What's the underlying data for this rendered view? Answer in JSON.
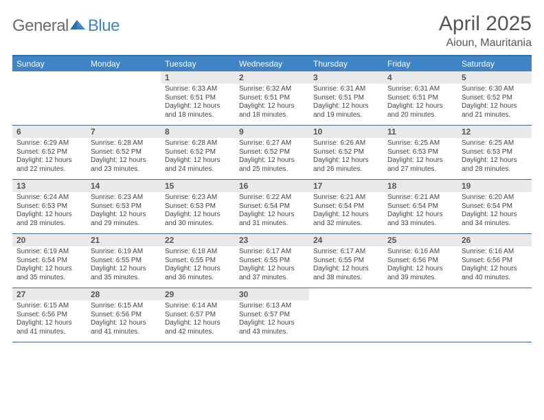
{
  "logo": {
    "general": "General",
    "blue": "Blue"
  },
  "title": "April 2025",
  "location": "Aioun, Mauritania",
  "colors": {
    "header_bar": "#3f84c4",
    "header_border_top": "#2f6fa8",
    "week_border": "#3f6b93",
    "daynum_bg": "#e9e9e9",
    "text": "#555",
    "body_text": "#444"
  },
  "fonts": {
    "title_size": 30,
    "location_size": 16,
    "dayhead_size": 12,
    "daynum_size": 12,
    "body_size": 10
  },
  "daynames": [
    "Sunday",
    "Monday",
    "Tuesday",
    "Wednesday",
    "Thursday",
    "Friday",
    "Saturday"
  ],
  "weeks": [
    [
      {
        "n": "",
        "sr": "",
        "ss": "",
        "dl": ""
      },
      {
        "n": "",
        "sr": "",
        "ss": "",
        "dl": ""
      },
      {
        "n": "1",
        "sr": "Sunrise: 6:33 AM",
        "ss": "Sunset: 6:51 PM",
        "dl": "Daylight: 12 hours and 18 minutes."
      },
      {
        "n": "2",
        "sr": "Sunrise: 6:32 AM",
        "ss": "Sunset: 6:51 PM",
        "dl": "Daylight: 12 hours and 18 minutes."
      },
      {
        "n": "3",
        "sr": "Sunrise: 6:31 AM",
        "ss": "Sunset: 6:51 PM",
        "dl": "Daylight: 12 hours and 19 minutes."
      },
      {
        "n": "4",
        "sr": "Sunrise: 6:31 AM",
        "ss": "Sunset: 6:51 PM",
        "dl": "Daylight: 12 hours and 20 minutes."
      },
      {
        "n": "5",
        "sr": "Sunrise: 6:30 AM",
        "ss": "Sunset: 6:52 PM",
        "dl": "Daylight: 12 hours and 21 minutes."
      }
    ],
    [
      {
        "n": "6",
        "sr": "Sunrise: 6:29 AM",
        "ss": "Sunset: 6:52 PM",
        "dl": "Daylight: 12 hours and 22 minutes."
      },
      {
        "n": "7",
        "sr": "Sunrise: 6:28 AM",
        "ss": "Sunset: 6:52 PM",
        "dl": "Daylight: 12 hours and 23 minutes."
      },
      {
        "n": "8",
        "sr": "Sunrise: 6:28 AM",
        "ss": "Sunset: 6:52 PM",
        "dl": "Daylight: 12 hours and 24 minutes."
      },
      {
        "n": "9",
        "sr": "Sunrise: 6:27 AM",
        "ss": "Sunset: 6:52 PM",
        "dl": "Daylight: 12 hours and 25 minutes."
      },
      {
        "n": "10",
        "sr": "Sunrise: 6:26 AM",
        "ss": "Sunset: 6:52 PM",
        "dl": "Daylight: 12 hours and 26 minutes."
      },
      {
        "n": "11",
        "sr": "Sunrise: 6:25 AM",
        "ss": "Sunset: 6:53 PM",
        "dl": "Daylight: 12 hours and 27 minutes."
      },
      {
        "n": "12",
        "sr": "Sunrise: 6:25 AM",
        "ss": "Sunset: 6:53 PM",
        "dl": "Daylight: 12 hours and 28 minutes."
      }
    ],
    [
      {
        "n": "13",
        "sr": "Sunrise: 6:24 AM",
        "ss": "Sunset: 6:53 PM",
        "dl": "Daylight: 12 hours and 28 minutes."
      },
      {
        "n": "14",
        "sr": "Sunrise: 6:23 AM",
        "ss": "Sunset: 6:53 PM",
        "dl": "Daylight: 12 hours and 29 minutes."
      },
      {
        "n": "15",
        "sr": "Sunrise: 6:23 AM",
        "ss": "Sunset: 6:53 PM",
        "dl": "Daylight: 12 hours and 30 minutes."
      },
      {
        "n": "16",
        "sr": "Sunrise: 6:22 AM",
        "ss": "Sunset: 6:54 PM",
        "dl": "Daylight: 12 hours and 31 minutes."
      },
      {
        "n": "17",
        "sr": "Sunrise: 6:21 AM",
        "ss": "Sunset: 6:54 PM",
        "dl": "Daylight: 12 hours and 32 minutes."
      },
      {
        "n": "18",
        "sr": "Sunrise: 6:21 AM",
        "ss": "Sunset: 6:54 PM",
        "dl": "Daylight: 12 hours and 33 minutes."
      },
      {
        "n": "19",
        "sr": "Sunrise: 6:20 AM",
        "ss": "Sunset: 6:54 PM",
        "dl": "Daylight: 12 hours and 34 minutes."
      }
    ],
    [
      {
        "n": "20",
        "sr": "Sunrise: 6:19 AM",
        "ss": "Sunset: 6:54 PM",
        "dl": "Daylight: 12 hours and 35 minutes."
      },
      {
        "n": "21",
        "sr": "Sunrise: 6:19 AM",
        "ss": "Sunset: 6:55 PM",
        "dl": "Daylight: 12 hours and 35 minutes."
      },
      {
        "n": "22",
        "sr": "Sunrise: 6:18 AM",
        "ss": "Sunset: 6:55 PM",
        "dl": "Daylight: 12 hours and 36 minutes."
      },
      {
        "n": "23",
        "sr": "Sunrise: 6:17 AM",
        "ss": "Sunset: 6:55 PM",
        "dl": "Daylight: 12 hours and 37 minutes."
      },
      {
        "n": "24",
        "sr": "Sunrise: 6:17 AM",
        "ss": "Sunset: 6:55 PM",
        "dl": "Daylight: 12 hours and 38 minutes."
      },
      {
        "n": "25",
        "sr": "Sunrise: 6:16 AM",
        "ss": "Sunset: 6:56 PM",
        "dl": "Daylight: 12 hours and 39 minutes."
      },
      {
        "n": "26",
        "sr": "Sunrise: 6:16 AM",
        "ss": "Sunset: 6:56 PM",
        "dl": "Daylight: 12 hours and 40 minutes."
      }
    ],
    [
      {
        "n": "27",
        "sr": "Sunrise: 6:15 AM",
        "ss": "Sunset: 6:56 PM",
        "dl": "Daylight: 12 hours and 41 minutes."
      },
      {
        "n": "28",
        "sr": "Sunrise: 6:15 AM",
        "ss": "Sunset: 6:56 PM",
        "dl": "Daylight: 12 hours and 41 minutes."
      },
      {
        "n": "29",
        "sr": "Sunrise: 6:14 AM",
        "ss": "Sunset: 6:57 PM",
        "dl": "Daylight: 12 hours and 42 minutes."
      },
      {
        "n": "30",
        "sr": "Sunrise: 6:13 AM",
        "ss": "Sunset: 6:57 PM",
        "dl": "Daylight: 12 hours and 43 minutes."
      },
      {
        "n": "",
        "sr": "",
        "ss": "",
        "dl": ""
      },
      {
        "n": "",
        "sr": "",
        "ss": "",
        "dl": ""
      },
      {
        "n": "",
        "sr": "",
        "ss": "",
        "dl": ""
      }
    ]
  ]
}
